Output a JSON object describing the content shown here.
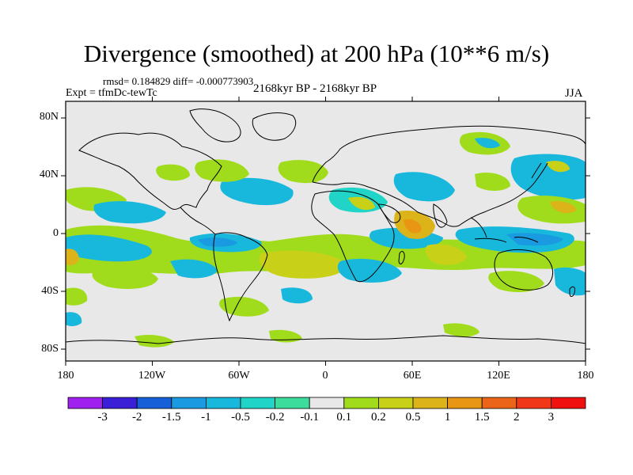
{
  "title": "Divergence (smoothed) at 200 hPa (10**6 m/s)",
  "stats": "rmsd= 0.184829 diff= -0.000773903",
  "expt": "Expt = tfmDc-tewTc",
  "period": "2168kyr BP - 2168kyr BP",
  "season": "JJA",
  "lat_labels": [
    "80N",
    "40N",
    "0",
    "40S",
    "80S"
  ],
  "lon_labels": [
    "180",
    "120W",
    "60W",
    "0",
    "60E",
    "120E",
    "180"
  ],
  "colorbar": {
    "labels": [
      "-3",
      "-2",
      "-1.5",
      "-1",
      "-0.5",
      "-0.2",
      "-0.1",
      "0.1",
      "0.2",
      "0.5",
      "1",
      "1.5",
      "2",
      "3"
    ],
    "colors": [
      "#a020f0",
      "#3a1fd6",
      "#1560d8",
      "#1a9ae0",
      "#18b8dc",
      "#20d4c8",
      "#3cdc9c",
      "#e8e8e8",
      "#a0dc1c",
      "#c8d018",
      "#dcb41a",
      "#e89614",
      "#ec6418",
      "#f03818",
      "#f01010"
    ]
  },
  "colors": {
    "ocean": "#e8e8e8",
    "coast": "#000000"
  }
}
